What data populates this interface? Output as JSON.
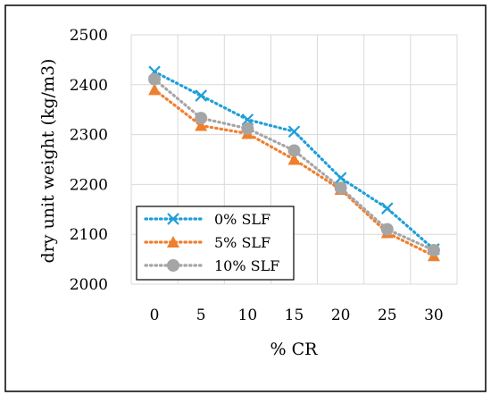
{
  "chart_data": {
    "type": "line",
    "title": "",
    "xlabel": "% CR",
    "ylabel": "dry unit weight (kg/m3)",
    "categories": [
      "0",
      "5",
      "10",
      "15",
      "20",
      "25",
      "30"
    ],
    "ylim": [
      2000,
      2500
    ],
    "yticks": [
      "2000",
      "2100",
      "2200",
      "2300",
      "2400",
      "2500"
    ],
    "grid": "horizontal and vertical",
    "legend_position": "lower-left",
    "series": [
      {
        "name": "0% SLF",
        "color": "#1f9fd8",
        "marker": "x",
        "values": [
          2426,
          2378,
          2330,
          2306,
          2213,
          2152,
          2070
        ]
      },
      {
        "name": "5% SLF",
        "color": "#f07f2d",
        "marker": "triangle",
        "values": [
          2390,
          2318,
          2302,
          2250,
          2190,
          2103,
          2057
        ]
      },
      {
        "name": "10% SLF",
        "color": "#a5a5a5",
        "marker": "circle",
        "values": [
          2411,
          2333,
          2312,
          2268,
          2193,
          2110,
          2068
        ]
      }
    ]
  }
}
